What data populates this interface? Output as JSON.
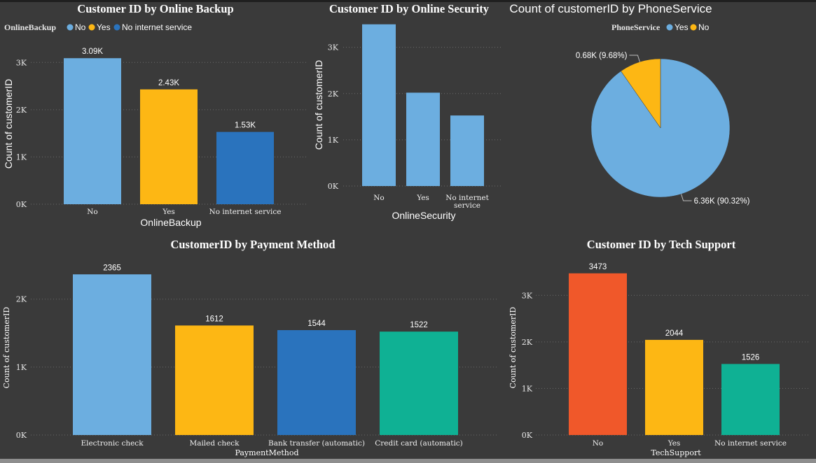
{
  "colors": {
    "background": "#3a3a3a",
    "light_blue": "#6caee0",
    "yellow": "#fdb714",
    "blue": "#2a73bd",
    "teal": "#0fb194",
    "orange_red": "#f0582a"
  },
  "chart_data": [
    {
      "id": "online_backup",
      "type": "bar",
      "title": "Customer ID by Online Backup",
      "xlabel": "OnlineBackup",
      "ylabel": "Count of customerID",
      "legend": {
        "title": "OnlineBackup",
        "position": "top-left",
        "items": [
          "No",
          "Yes",
          "No internet service"
        ]
      },
      "categories": [
        "No",
        "Yes",
        "No internet service"
      ],
      "values": [
        3090,
        2430,
        1530
      ],
      "data_labels": [
        "3.09K",
        "2.43K",
        "1.53K"
      ],
      "colors": [
        "#6caee0",
        "#fdb714",
        "#2a73bd"
      ],
      "yticks": [
        0,
        1000,
        2000,
        3000
      ],
      "ytick_labels": [
        "0K",
        "1K",
        "2K",
        "3K"
      ],
      "ylim": [
        0,
        3300
      ],
      "grid": true
    },
    {
      "id": "online_security",
      "type": "bar",
      "title": "Customer ID by Online Security",
      "xlabel": "OnlineSecurity",
      "ylabel": "Count of customerID",
      "categories": [
        "No",
        "Yes",
        "No internet service"
      ],
      "category_lines": [
        [
          "No"
        ],
        [
          "Yes"
        ],
        [
          "No internet",
          "service"
        ]
      ],
      "values": [
        3498,
        2019,
        1526
      ],
      "data_labels": [],
      "colors": [
        "#6caee0",
        "#6caee0",
        "#6caee0"
      ],
      "yticks": [
        0,
        1000,
        2000,
        3000
      ],
      "ytick_labels": [
        "0K",
        "1K",
        "2K",
        "3K"
      ],
      "ylim": [
        0,
        3600
      ],
      "grid": true
    },
    {
      "id": "phone_service",
      "type": "pie",
      "title": "Count of customerID by PhoneService",
      "legend": {
        "title": "PhoneService",
        "position": "top-center",
        "items": [
          "Yes",
          "No"
        ]
      },
      "slices": [
        {
          "label": "Yes",
          "value": 6360,
          "percent": 90.32,
          "data_label": "6.36K (90.32%)",
          "color": "#6caee0"
        },
        {
          "label": "No",
          "value": 680,
          "percent": 9.68,
          "data_label": "0.68K (9.68%)",
          "color": "#fdb714"
        }
      ]
    },
    {
      "id": "payment_method",
      "type": "bar",
      "title": "CustomerID by Payment Method",
      "xlabel": "PaymentMethod",
      "ylabel": "Count of customerID",
      "categories": [
        "Electronic check",
        "Mailed check",
        "Bank transfer (automatic)",
        "Credit card (automatic)"
      ],
      "values": [
        2365,
        1612,
        1544,
        1522
      ],
      "data_labels": [
        "2365",
        "1612",
        "1544",
        "1522"
      ],
      "colors": [
        "#6caee0",
        "#fdb714",
        "#2a73bd",
        "#0fb194"
      ],
      "yticks": [
        0,
        1000,
        2000
      ],
      "ytick_labels": [
        "0K",
        "1K",
        "2K"
      ],
      "ylim": [
        0,
        2450
      ],
      "grid": true
    },
    {
      "id": "tech_support",
      "type": "bar",
      "title": "Customer ID by Tech Support",
      "xlabel": "TechSupport",
      "ylabel": "Count of customerID",
      "categories": [
        "No",
        "Yes",
        "No internet service"
      ],
      "values": [
        3473,
        2044,
        1526
      ],
      "data_labels": [
        "3473",
        "2044",
        "1526"
      ],
      "colors": [
        "#f0582a",
        "#fdb714",
        "#0fb194"
      ],
      "yticks": [
        0,
        1000,
        2000,
        3000
      ],
      "ytick_labels": [
        "0K",
        "1K",
        "2K",
        "3K"
      ],
      "ylim": [
        0,
        3530
      ],
      "grid": true
    }
  ]
}
